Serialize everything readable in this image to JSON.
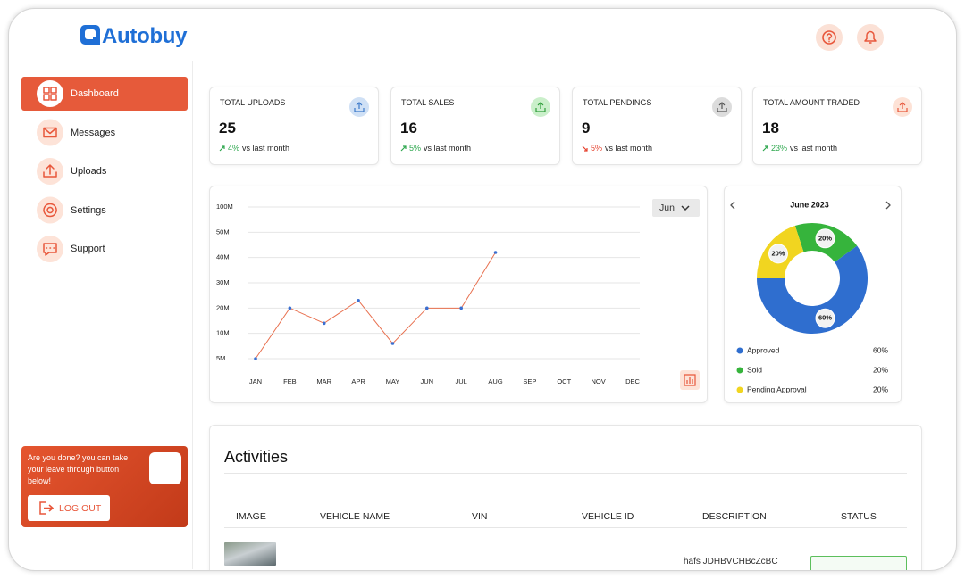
{
  "brand": "Autobuy",
  "nav": {
    "items": [
      "Dashboard",
      "Messages",
      "Uploads",
      "Settings",
      "Support"
    ],
    "active": 0
  },
  "logout": {
    "message": "Are you done?  you can take your leave through button below!",
    "button": "LOG OUT"
  },
  "stats": [
    {
      "title": "TOTAL UPLOADS",
      "value": 25,
      "change": "4%",
      "trend": "up",
      "note": "vs last month"
    },
    {
      "title": "TOTAL SALES",
      "value": 16,
      "change": "5%",
      "trend": "up",
      "note": "vs last month"
    },
    {
      "title": "TOTAL PENDINGS",
      "value": 9,
      "change": "5%",
      "trend": "down",
      "note": "vs last month"
    },
    {
      "title": "TOTAL AMOUNT TRADED",
      "value": 18,
      "change": "23%",
      "trend": "up",
      "note": "vs last month"
    }
  ],
  "chart_data": [
    {
      "type": "line",
      "period": "Jun",
      "categories": [
        "JAN",
        "FEB",
        "MAR",
        "APR",
        "MAY",
        "JUN",
        "JUL",
        "AUG",
        "SEP",
        "OCT",
        "NOV",
        "DEC"
      ],
      "series": [
        {
          "color": "#e8704f",
          "marker_color": "#3a6fd1",
          "values": [
            5000000,
            20000000,
            14000000,
            23000000,
            8000000,
            20000000,
            20000000,
            42000000,
            null,
            null,
            null,
            null
          ]
        }
      ],
      "ylim": [
        5000000,
        100000000
      ],
      "yticks": [
        {
          "value": 5000000,
          "label": "5M"
        },
        {
          "value": 10000000,
          "label": "10M"
        },
        {
          "value": 20000000,
          "label": "20M"
        },
        {
          "value": 30000000,
          "label": "30M"
        },
        {
          "value": 40000000,
          "label": "40M"
        },
        {
          "value": 50000000,
          "label": "50M"
        },
        {
          "value": 100000000,
          "label": "100M"
        }
      ],
      "grid": true
    },
    {
      "type": "pie",
      "donut": true,
      "title": "June 2023",
      "categories": [
        "Approved",
        "Sold",
        "Pending Approval"
      ],
      "values": [
        60,
        20,
        20
      ],
      "value_labels": [
        "60%",
        "20%",
        "20%"
      ],
      "colors": [
        "#2f6ecf",
        "#36b43c",
        "#f1d520"
      ]
    }
  ],
  "activities": {
    "title": "Activities",
    "columns": [
      "IMAGE",
      "VEHICLE NAME",
      "VIN",
      "VEHICLE ID",
      "DESCRIPTION",
      "STATUS"
    ],
    "rows": [
      {
        "description": "hafs JDHBVCHBcZcBC"
      }
    ]
  }
}
